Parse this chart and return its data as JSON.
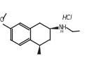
{
  "bg_color": "#ffffff",
  "line_color": "#1a1a1a",
  "line_width": 0.9,
  "fig_width": 1.24,
  "fig_height": 0.93,
  "dpi": 100,
  "hcl_text": "HCl",
  "nh_text": "NH",
  "h_text": "H"
}
